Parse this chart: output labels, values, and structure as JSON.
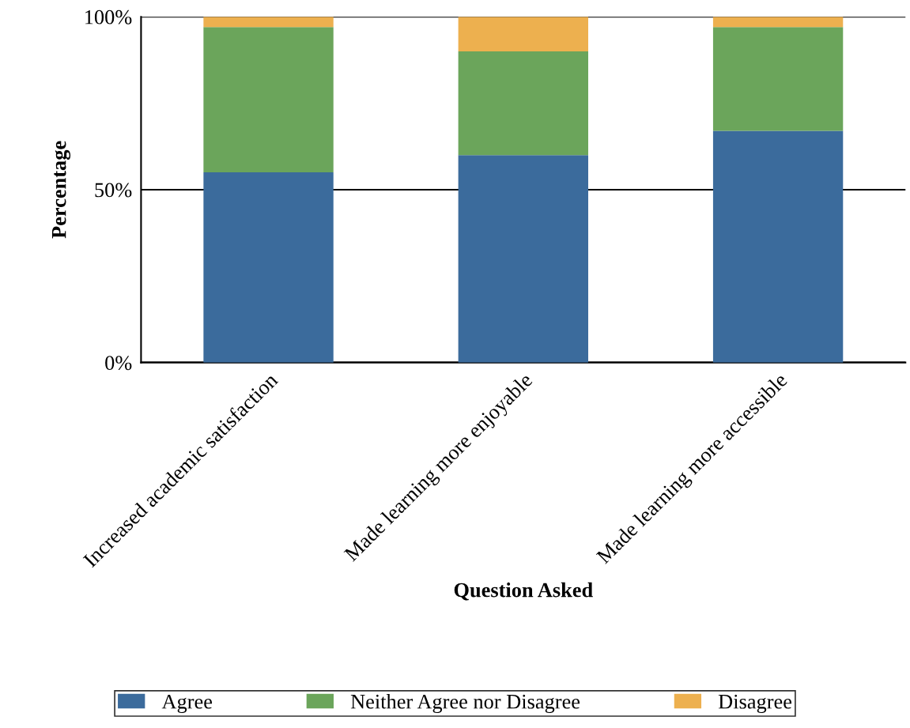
{
  "chart_data": {
    "type": "bar",
    "stacked": true,
    "xlabel": "Question Asked",
    "ylabel": "Percentage",
    "categories": [
      "Increased academic satisfaction",
      "Made learning more enjoyable",
      "Made learning more accessible"
    ],
    "series": [
      {
        "name": "Agree",
        "color": "#3b6b9c",
        "values": [
          55,
          60,
          67
        ]
      },
      {
        "name": "Neither Agree nor Disagree",
        "color": "#6ba55b",
        "values": [
          42,
          30,
          30
        ]
      },
      {
        "name": "Disagree",
        "color": "#edb04f",
        "values": [
          3,
          10,
          3
        ]
      }
    ],
    "ylim": [
      0,
      100
    ],
    "yticks": [
      {
        "value": 0,
        "label": "0%"
      },
      {
        "value": 50,
        "label": "50%"
      },
      {
        "value": 100,
        "label": "100%"
      }
    ],
    "grid": "y",
    "legend": "bottom"
  }
}
